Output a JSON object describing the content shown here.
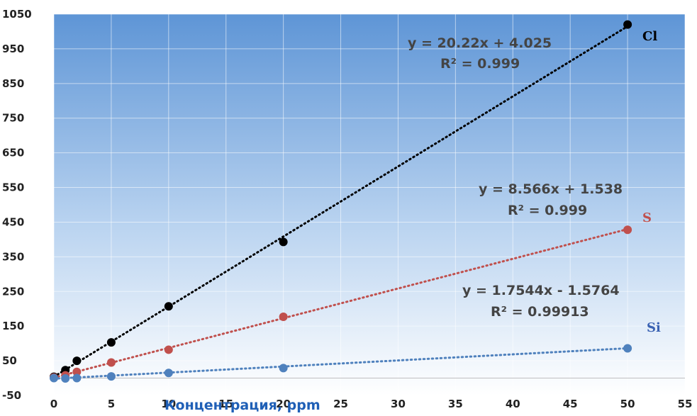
{
  "chart_data": {
    "type": "scatter",
    "title": "",
    "xlabel": "Концентрация, ppm",
    "ylabel": "",
    "xlim": [
      0,
      55
    ],
    "ylim": [
      -50,
      1050
    ],
    "xticks": [
      0,
      5,
      10,
      15,
      20,
      25,
      30,
      35,
      40,
      45,
      50,
      55
    ],
    "yticks": [
      -50,
      50,
      150,
      250,
      350,
      450,
      550,
      650,
      750,
      850,
      950,
      1050
    ],
    "grid": true,
    "trendline_style": "dotted",
    "series": [
      {
        "name": "Cl",
        "color": "#000000",
        "x": [
          0,
          1,
          2,
          5,
          10,
          20,
          50
        ],
        "y": [
          4,
          23,
          50,
          103,
          207,
          393,
          1020
        ],
        "equation": "y = 20.22x + 4.025",
        "r2_label": "R² = 0.999",
        "slope": 20.22,
        "intercept": 4.025
      },
      {
        "name": "S",
        "color": "#c0504d",
        "x": [
          0,
          1,
          2,
          5,
          10,
          20,
          50
        ],
        "y": [
          2,
          8,
          18,
          45,
          82,
          177,
          428
        ],
        "equation": "y = 8.566x + 1.538",
        "r2_label": "R² = 0.999",
        "slope": 8.566,
        "intercept": 1.538
      },
      {
        "name": "Si",
        "color": "#4f81bd",
        "x": [
          0,
          1,
          2,
          5,
          10,
          20,
          50
        ],
        "y": [
          0,
          -1,
          0,
          5,
          15,
          29,
          86
        ],
        "equation": "y = 1.7544x - 1.5764",
        "r2_label": "R² = 0.99913",
        "slope": 1.7544,
        "intercept": -1.5764
      }
    ]
  }
}
